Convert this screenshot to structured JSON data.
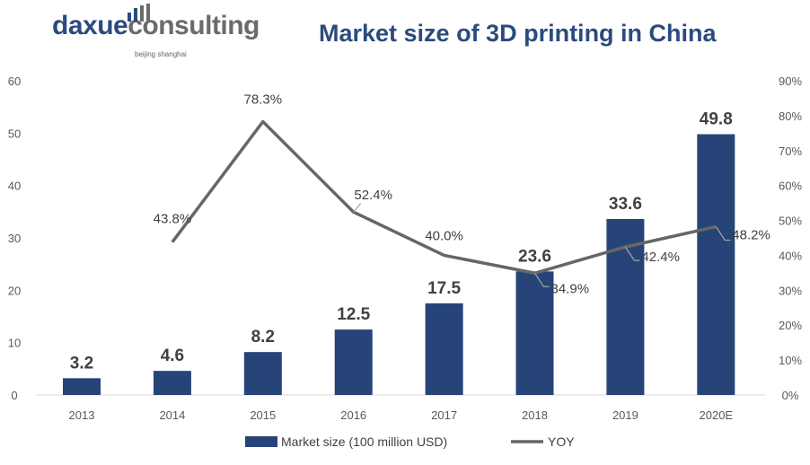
{
  "logo": {
    "part1": "daxue",
    "part2": "consulting",
    "tagline": "beijing shanghai"
  },
  "chart_data": {
    "type": "bar+line",
    "title": "Market size of 3D printing in China",
    "categories": [
      "2013",
      "2014",
      "2015",
      "2016",
      "2017",
      "2018",
      "2019",
      "2020E"
    ],
    "series": [
      {
        "name": "Market size (100 million USD)",
        "type": "bar",
        "axis": "left",
        "color": "#264478",
        "values": [
          3.2,
          4.6,
          8.2,
          12.5,
          17.5,
          23.6,
          33.6,
          49.8
        ],
        "labels": [
          "3.2",
          "4.6",
          "8.2",
          "12.5",
          "17.5",
          "23.6",
          "33.6",
          "49.8"
        ]
      },
      {
        "name": "YOY",
        "type": "line",
        "axis": "right",
        "color": "#666666",
        "values": [
          null,
          43.8,
          78.3,
          52.4,
          40.0,
          34.9,
          42.4,
          48.2
        ],
        "labels": [
          null,
          "43.8%",
          "78.3%",
          "52.4%",
          "40.0%",
          "34.9%",
          "42.4%",
          "48.2%"
        ]
      }
    ],
    "y_left": {
      "range": [
        0,
        60
      ],
      "ticks": [
        "0",
        "10",
        "20",
        "30",
        "40",
        "50",
        "60"
      ]
    },
    "y_right": {
      "range": [
        0,
        90
      ],
      "ticks": [
        "0%",
        "10%",
        "20%",
        "30%",
        "40%",
        "50%",
        "60%",
        "70%",
        "80%",
        "90%"
      ]
    },
    "grid": false,
    "legend_position": "bottom"
  }
}
